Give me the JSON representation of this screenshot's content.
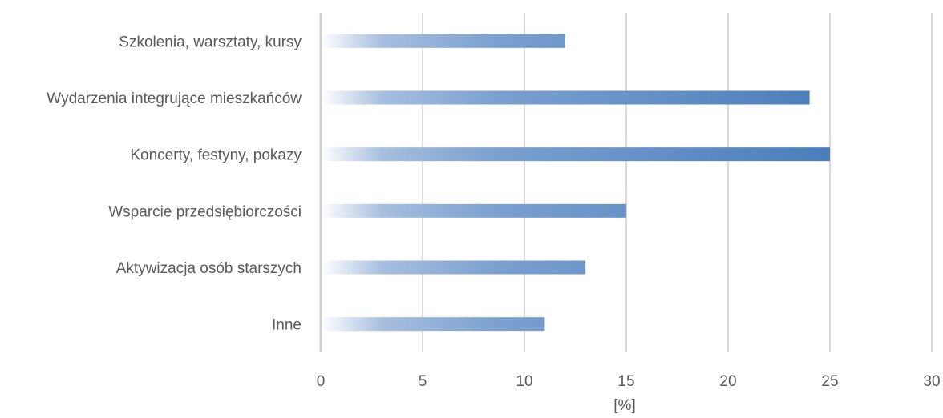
{
  "chart_data": {
    "type": "bar",
    "orientation": "horizontal",
    "categories": [
      "Szkolenia, warsztaty, kursy",
      "Wydarzenia integrujące mieszkańców",
      "Koncerty, festyny, pokazy",
      "Wsparcie przedsiębiorczości",
      "Aktywizacja osób starszych",
      "Inne"
    ],
    "values": [
      12,
      24,
      25,
      15,
      13,
      11
    ],
    "xlabel": "[%]",
    "ylabel": "",
    "xlim": [
      0,
      30
    ],
    "xticks": [
      "0",
      "5",
      "10",
      "15",
      "20",
      "25",
      "30"
    ],
    "grid": "vertical",
    "bar_color": "#4a7ebb",
    "bar_fade_color": "#ffffff"
  }
}
